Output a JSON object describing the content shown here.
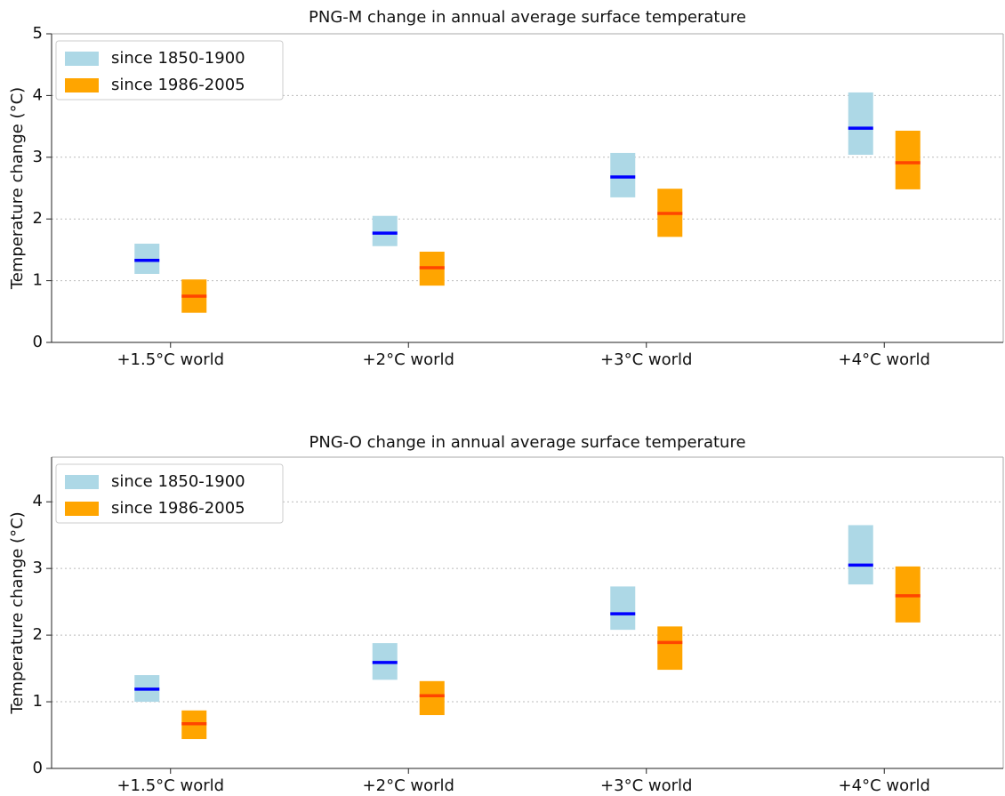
{
  "chart_data": [
    {
      "type": "range-bar",
      "title": "PNG-M change in annual average surface temperature",
      "ylabel": "Temperature change (°C)",
      "categories": [
        "+1.5°C world",
        "+2°C world",
        "+3°C world",
        "+4°C world"
      ],
      "series": [
        {
          "name": "since 1850-1900",
          "color": "#add8e6",
          "median_color": "#0000ff",
          "values": [
            1.33,
            1.77,
            2.68,
            3.47
          ],
          "low": [
            1.11,
            1.56,
            2.35,
            3.04
          ],
          "high": [
            1.6,
            2.05,
            3.07,
            4.05
          ]
        },
        {
          "name": "since 1986-2005",
          "color": "#ffa500",
          "median_color": "#ff4500",
          "values": [
            0.75,
            1.21,
            2.09,
            2.91
          ],
          "low": [
            0.48,
            0.92,
            1.71,
            2.48
          ],
          "high": [
            1.02,
            1.47,
            2.49,
            3.43
          ]
        }
      ],
      "ylim": [
        0,
        5
      ],
      "yticks": [
        0,
        1,
        2,
        3,
        4,
        5
      ],
      "grid": true,
      "legend": "upper left"
    },
    {
      "type": "range-bar",
      "title": "PNG-O change in annual average surface temperature",
      "ylabel": "Temperature change (°C)",
      "categories": [
        "+1.5°C world",
        "+2°C world",
        "+3°C world",
        "+4°C world"
      ],
      "series": [
        {
          "name": "since 1850-1900",
          "color": "#add8e6",
          "median_color": "#0000ff",
          "values": [
            1.19,
            1.59,
            2.32,
            3.05
          ],
          "low": [
            1.0,
            1.33,
            2.08,
            2.76
          ],
          "high": [
            1.4,
            1.88,
            2.73,
            3.65
          ]
        },
        {
          "name": "since 1986-2005",
          "color": "#ffa500",
          "median_color": "#ff4500",
          "values": [
            0.67,
            1.09,
            1.89,
            2.59
          ],
          "low": [
            0.44,
            0.8,
            1.48,
            2.19
          ],
          "high": [
            0.87,
            1.31,
            2.13,
            3.03
          ]
        }
      ],
      "ylim": [
        0,
        4.67
      ],
      "yticks": [
        0,
        1,
        2,
        3,
        4
      ],
      "grid": true,
      "legend": "upper left"
    }
  ]
}
